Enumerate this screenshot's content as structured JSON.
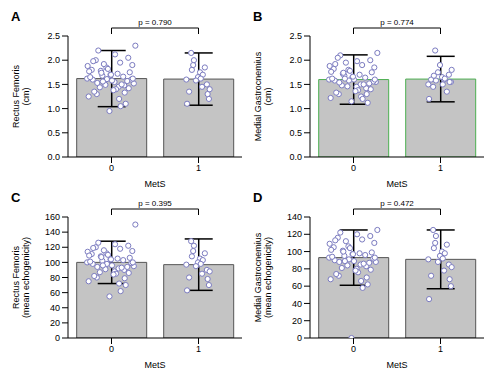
{
  "chart_data": [
    {
      "type": "bar",
      "title": "A",
      "annotation": "p = 0.790",
      "x_label": "MetS",
      "y_label": [
        "Rectus Femoris",
        "(cm)"
      ],
      "categories": [
        "0",
        "1"
      ],
      "values": [
        1.62,
        1.61
      ],
      "errors": [
        0.58,
        0.54
      ],
      "color": "#c4c4c4",
      "ylim": [
        0,
        2.5
      ],
      "yticks": [
        {
          "value": 0,
          "label": "0.0"
        },
        0.5,
        {
          "value": 1,
          "label": "1.0"
        },
        1.5,
        {
          "value": 2,
          "label": "2.0"
        },
        2.5
      ],
      "points": [
        [
          1.62,
          1.45,
          1.78,
          1.9,
          1.55,
          1.3,
          2.05,
          1.7,
          1.6,
          1.48,
          1.85,
          1.25,
          1.95,
          1.68,
          1.52,
          1.4,
          2.2,
          1.75,
          1.58,
          1.35,
          1.1,
          1.82,
          1.65,
          1.5,
          1.92,
          2.3,
          1.72,
          1.44,
          1.6,
          1.38,
          2.0,
          1.57,
          0.95,
          1.8,
          1.66,
          1.49,
          1.88,
          1.2,
          1.74,
          1.62,
          2.12,
          1.53,
          1.42,
          1.7,
          1.98,
          1.33,
          1.61,
          1.77,
          1.05,
          1.56
        ],
        [
          1.6,
          1.45,
          1.9,
          1.2,
          1.75,
          2.15,
          1.5,
          1.65,
          1.35,
          1.85,
          1.58,
          1.1,
          1.7,
          2.0,
          1.4,
          1.62,
          1.8,
          1.3
        ]
      ]
    },
    {
      "type": "bar",
      "title": "B",
      "annotation": "p = 0.774",
      "x_label": "MetS",
      "y_label": [
        "Medial Gastrocnemius",
        "(cm)"
      ],
      "categories": [
        "0",
        "1"
      ],
      "values": [
        1.6,
        1.61
      ],
      "errors": [
        0.51,
        0.47
      ],
      "color": "#c4c4c4",
      "ylim": [
        0,
        2.5
      ],
      "yticks": [
        {
          "value": 0,
          "label": "0.0"
        },
        0.5,
        {
          "value": 1,
          "label": "1.0"
        },
        1.5,
        {
          "value": 2,
          "label": "2.0"
        },
        2.5
      ],
      "points": [
        [
          1.6,
          1.5,
          1.72,
          1.85,
          1.45,
          1.3,
          2.0,
          1.65,
          1.58,
          1.42,
          1.8,
          1.22,
          1.9,
          1.68,
          1.55,
          1.38,
          2.1,
          1.75,
          1.6,
          1.33,
          1.12,
          1.78,
          1.62,
          1.5,
          1.95,
          2.15,
          1.7,
          1.48,
          1.56,
          1.36,
          2.05,
          1.52,
          1.15,
          1.82,
          1.64,
          1.46,
          1.88,
          1.25,
          1.74,
          1.6,
          1.98,
          1.54,
          1.4,
          1.66,
          1.92,
          1.3,
          1.58,
          1.76,
          1.2,
          1.62
        ],
        [
          1.5,
          1.6,
          2.2,
          1.55,
          1.65,
          1.45,
          1.7,
          1.9,
          1.6,
          1.35,
          1.75,
          1.2,
          1.62,
          1.58,
          1.8,
          1.5,
          1.68,
          1.55
        ]
      ]
    },
    {
      "type": "bar",
      "title": "C",
      "annotation": "p = 0.395",
      "x_label": "MetS",
      "y_label": [
        "Rectus Femoris",
        "(mean echogenicity)"
      ],
      "categories": [
        "0",
        "1"
      ],
      "values": [
        100,
        97
      ],
      "errors": [
        28,
        34
      ],
      "color": "#c4c4c4",
      "ylim": [
        0,
        160
      ],
      "yticks": [
        0,
        20,
        40,
        60,
        80,
        100,
        120,
        140,
        160
      ],
      "points": [
        [
          100,
          92,
          108,
          115,
          88,
          80,
          122,
          104,
          98,
          90,
          112,
          75,
          118,
          102,
          95,
          85,
          126,
          106,
          96,
          82,
          70,
          110,
          101,
          93,
          116,
          150,
          105,
          87,
          99,
          84,
          120,
          94,
          55,
          111,
          103,
          91,
          114,
          72,
          107,
          100,
          124,
          94,
          86,
          104,
          119,
          79,
          98,
          109,
          62,
          96
        ],
        [
          97,
          85,
          115,
          70,
          105,
          128,
          90,
          100,
          80,
          112,
          95,
          63,
          103,
          122,
          88,
          98,
          108,
          78
        ]
      ]
    },
    {
      "type": "bar",
      "title": "D",
      "annotation": "p = 0.472",
      "x_label": "MetS",
      "y_label": [
        "Medial Gastrocnemius",
        "(mean echogenicity)"
      ],
      "categories": [
        "0",
        "1"
      ],
      "values": [
        93,
        91
      ],
      "errors": [
        32,
        34
      ],
      "color": "#c4c4c4",
      "ylim": [
        0,
        140
      ],
      "yticks": [
        0,
        20,
        40,
        60,
        80,
        100,
        120,
        140
      ],
      "points": [
        [
          93,
          85,
          101,
          110,
          80,
          72,
          118,
          97,
          90,
          83,
          106,
          68,
          114,
          95,
          88,
          76,
          122,
          99,
          89,
          74,
          62,
          104,
          94,
          86,
          112,
          125,
          98,
          81,
          92,
          78,
          116,
          87,
          0,
          105,
          96,
          84,
          109,
          66,
          100,
          93,
          120,
          88,
          79,
          97,
          113,
          70,
          91,
          102,
          58,
          89
        ],
        [
          91,
          78,
          110,
          60,
          100,
          125,
          85,
          95,
          72,
          108,
          88,
          45,
          98,
          118,
          82,
          92,
          104,
          68
        ]
      ]
    }
  ]
}
